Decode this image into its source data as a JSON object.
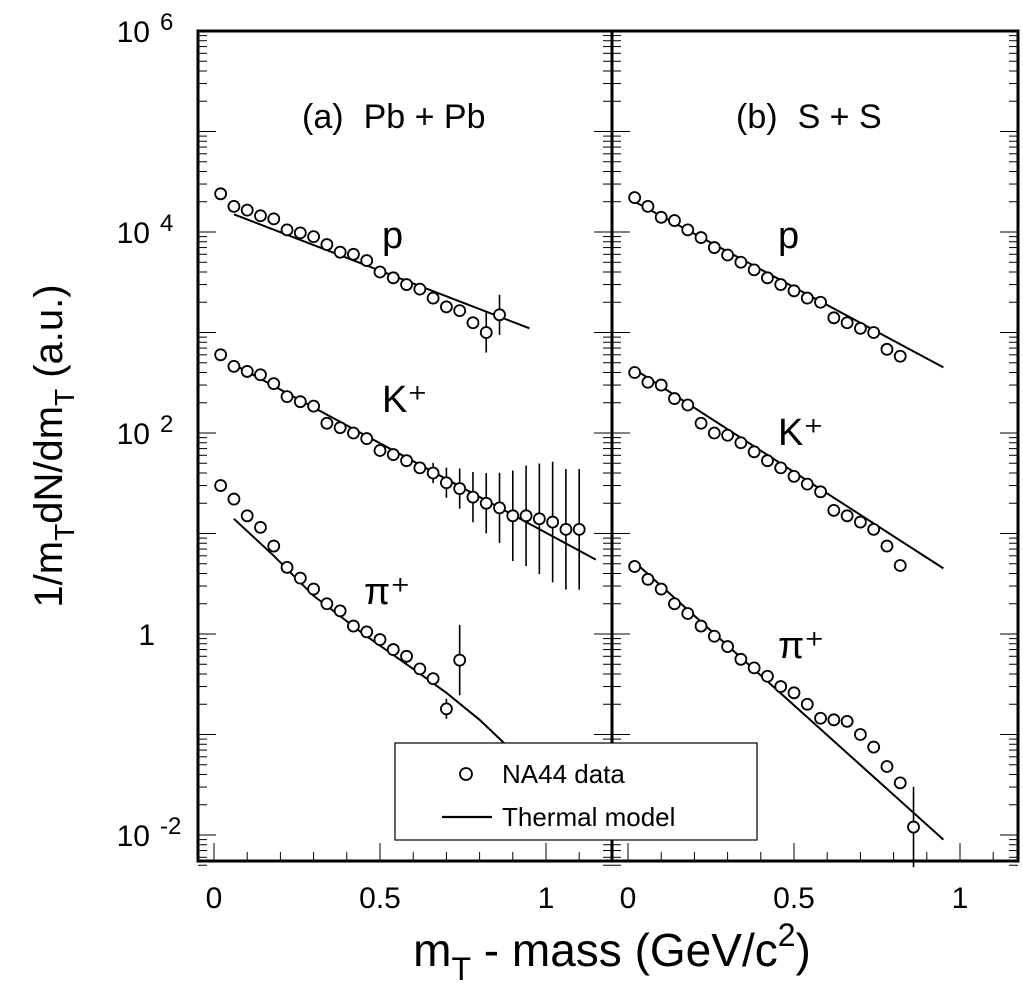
{
  "chart_data": [
    {
      "type": "scatter",
      "panel": "(a)",
      "label": "Pb + Pb",
      "xlim": [
        -0.05,
        1.2
      ],
      "ylim": [
        0.005,
        1000000
      ],
      "yscale": "log",
      "x_ticks": [
        "0",
        "0.5",
        "1"
      ],
      "series": [
        {
          "name": "p",
          "points": [
            [
              0.02,
              24000,
              0
            ],
            [
              0.06,
              18000,
              0
            ],
            [
              0.1,
              16500,
              0
            ],
            [
              0.14,
              14500,
              0
            ],
            [
              0.18,
              13500,
              0
            ],
            [
              0.22,
              10500,
              0
            ],
            [
              0.26,
              9800,
              0
            ],
            [
              0.3,
              9000,
              0
            ],
            [
              0.34,
              7500,
              0
            ],
            [
              0.38,
              6300,
              0
            ],
            [
              0.42,
              6000,
              0
            ],
            [
              0.46,
              5200,
              0
            ],
            [
              0.5,
              4000,
              0
            ],
            [
              0.54,
              3500,
              0
            ],
            [
              0.58,
              3000,
              0
            ],
            [
              0.62,
              2700,
              0
            ],
            [
              0.66,
              2200,
              0
            ],
            [
              0.7,
              1800,
              0
            ],
            [
              0.74,
              1650,
              0
            ],
            [
              0.78,
              1250,
              0
            ],
            [
              0.82,
              1000,
              0.2
            ],
            [
              0.86,
              1500,
              0.2
            ]
          ],
          "model": [
            [
              0.06,
              15000
            ],
            [
              0.95,
              1100
            ]
          ]
        },
        {
          "name": "K⁺",
          "points": [
            [
              0.02,
              600,
              0
            ],
            [
              0.06,
              460,
              0
            ],
            [
              0.1,
              410,
              0
            ],
            [
              0.14,
              380,
              0
            ],
            [
              0.18,
              310,
              0
            ],
            [
              0.22,
              230,
              0
            ],
            [
              0.26,
              205,
              0
            ],
            [
              0.3,
              185,
              0
            ],
            [
              0.34,
              125,
              0
            ],
            [
              0.38,
              113,
              0
            ],
            [
              0.42,
              100,
              0
            ],
            [
              0.46,
              88,
              0
            ],
            [
              0.5,
              67,
              0
            ],
            [
              0.54,
              61,
              0
            ],
            [
              0.58,
              53,
              0
            ],
            [
              0.62,
              45,
              0
            ],
            [
              0.66,
              40,
              0.1
            ],
            [
              0.7,
              32,
              0.15
            ],
            [
              0.74,
              28,
              0.2
            ],
            [
              0.78,
              23,
              0.25
            ],
            [
              0.82,
              20,
              0.3
            ],
            [
              0.86,
              18,
              0.35
            ],
            [
              0.9,
              15,
              0.45
            ],
            [
              0.94,
              15,
              0.5
            ],
            [
              0.98,
              14,
              0.55
            ],
            [
              1.02,
              13,
              0.6
            ],
            [
              1.06,
              11,
              0.6
            ],
            [
              1.1,
              11,
              0.6
            ]
          ],
          "model": [
            [
              0.06,
              480
            ],
            [
              1.15,
              5.5
            ]
          ]
        },
        {
          "name": "π⁺",
          "points": [
            [
              0.02,
              30,
              0
            ],
            [
              0.06,
              22,
              0
            ],
            [
              0.1,
              15,
              0
            ],
            [
              0.14,
              11.5,
              0
            ],
            [
              0.18,
              7.5,
              0
            ],
            [
              0.22,
              4.6,
              0
            ],
            [
              0.26,
              3.6,
              0
            ],
            [
              0.3,
              2.8,
              0
            ],
            [
              0.34,
              2.0,
              0
            ],
            [
              0.38,
              1.7,
              0
            ],
            [
              0.42,
              1.2,
              0
            ],
            [
              0.46,
              1.05,
              0
            ],
            [
              0.5,
              0.88,
              0
            ],
            [
              0.54,
              0.7,
              0
            ],
            [
              0.58,
              0.6,
              0
            ],
            [
              0.62,
              0.45,
              0
            ],
            [
              0.66,
              0.36,
              0
            ],
            [
              0.7,
              0.18,
              0.1
            ],
            [
              0.74,
              0.55,
              0.35
            ]
          ],
          "model": [
            [
              0.06,
              14
            ],
            [
              0.18,
              6
            ],
            [
              0.3,
              2.4
            ],
            [
              0.45,
              1.0
            ],
            [
              0.6,
              0.45
            ],
            [
              0.7,
              0.26
            ],
            [
              0.8,
              0.14
            ],
            [
              0.9,
              0.068
            ]
          ]
        }
      ]
    },
    {
      "type": "scatter",
      "panel": "(b)",
      "label": "S + S",
      "xlim": [
        -0.05,
        1.2
      ],
      "ylim": [
        0.005,
        1000000
      ],
      "yscale": "log",
      "x_ticks": [
        "0",
        "0.5",
        "1"
      ],
      "series": [
        {
          "name": "p",
          "points": [
            [
              0.02,
              22000,
              0
            ],
            [
              0.06,
              18000,
              0
            ],
            [
              0.1,
              14000,
              0
            ],
            [
              0.14,
              13000,
              0
            ],
            [
              0.18,
              10500,
              0
            ],
            [
              0.22,
              8800,
              0
            ],
            [
              0.26,
              7000,
              0
            ],
            [
              0.3,
              5900,
              0
            ],
            [
              0.34,
              5000,
              0
            ],
            [
              0.38,
              4200,
              0
            ],
            [
              0.42,
              3500,
              0
            ],
            [
              0.46,
              3000,
              0
            ],
            [
              0.5,
              2600,
              0
            ],
            [
              0.54,
              2200,
              0
            ],
            [
              0.58,
              2000,
              0
            ],
            [
              0.62,
              1400,
              0
            ],
            [
              0.66,
              1250,
              0
            ],
            [
              0.7,
              1100,
              0
            ],
            [
              0.74,
              1000,
              0
            ],
            [
              0.78,
              680,
              0
            ],
            [
              0.82,
              580,
              0
            ]
          ],
          "model": [
            [
              0.02,
              20000
            ],
            [
              0.95,
              450
            ]
          ]
        },
        {
          "name": "K⁺",
          "points": [
            [
              0.02,
              400,
              0
            ],
            [
              0.06,
              320,
              0
            ],
            [
              0.1,
              300,
              0
            ],
            [
              0.14,
              220,
              0
            ],
            [
              0.18,
              190,
              0
            ],
            [
              0.22,
              125,
              0
            ],
            [
              0.26,
              100,
              0
            ],
            [
              0.3,
              95,
              0
            ],
            [
              0.34,
              80,
              0
            ],
            [
              0.38,
              65,
              0
            ],
            [
              0.42,
              53,
              0
            ],
            [
              0.46,
              45,
              0
            ],
            [
              0.5,
              37,
              0
            ],
            [
              0.54,
              31,
              0
            ],
            [
              0.58,
              26,
              0
            ],
            [
              0.62,
              17,
              0
            ],
            [
              0.66,
              15,
              0
            ],
            [
              0.7,
              13,
              0
            ],
            [
              0.74,
              11,
              0
            ],
            [
              0.78,
              7.5,
              0
            ],
            [
              0.82,
              4.8,
              0
            ]
          ],
          "model": [
            [
              0.02,
              430
            ],
            [
              0.95,
              4.5
            ]
          ]
        },
        {
          "name": "π⁺",
          "points": [
            [
              0.02,
              4.7,
              0
            ],
            [
              0.06,
              3.5,
              0
            ],
            [
              0.1,
              2.8,
              0
            ],
            [
              0.14,
              2.0,
              0
            ],
            [
              0.18,
              1.6,
              0
            ],
            [
              0.22,
              1.2,
              0
            ],
            [
              0.26,
              0.95,
              0
            ],
            [
              0.3,
              0.75,
              0
            ],
            [
              0.34,
              0.56,
              0
            ],
            [
              0.38,
              0.46,
              0
            ],
            [
              0.42,
              0.38,
              0
            ],
            [
              0.46,
              0.3,
              0
            ],
            [
              0.5,
              0.26,
              0
            ],
            [
              0.54,
              0.2,
              0
            ],
            [
              0.58,
              0.145,
              0
            ],
            [
              0.62,
              0.14,
              0
            ],
            [
              0.66,
              0.135,
              0
            ],
            [
              0.7,
              0.1,
              0
            ],
            [
              0.74,
              0.075,
              0
            ],
            [
              0.78,
              0.048,
              0
            ],
            [
              0.82,
              0.033,
              0
            ],
            [
              0.86,
              0.012,
              0.4
            ]
          ],
          "model": [
            [
              0.02,
              5.2
            ],
            [
              0.95,
              0.009
            ]
          ]
        }
      ]
    }
  ],
  "axes": {
    "y_ticks": [
      {
        "base": "10",
        "exp": "6",
        "value": 1000000
      },
      {
        "base": "10",
        "exp": "4",
        "value": 10000
      },
      {
        "base": "10",
        "exp": "2",
        "value": 100
      },
      {
        "base": "1",
        "exp": "",
        "value": 1
      },
      {
        "base": "10",
        "exp": "-2",
        "value": 0.01
      }
    ],
    "ylabel": {
      "a": "1/m",
      "sub1": "T",
      "b": "dN/dm",
      "sub2": "T",
      "c": " (a.u.)"
    },
    "xlabel": {
      "a": "m",
      "sub": "T",
      "b": " - mass (GeV/c",
      "sup": "2",
      "c": ")"
    }
  },
  "legend": {
    "data_label": "NA44 data",
    "model_label": "Thermal model",
    "placement": "bottom-center"
  }
}
